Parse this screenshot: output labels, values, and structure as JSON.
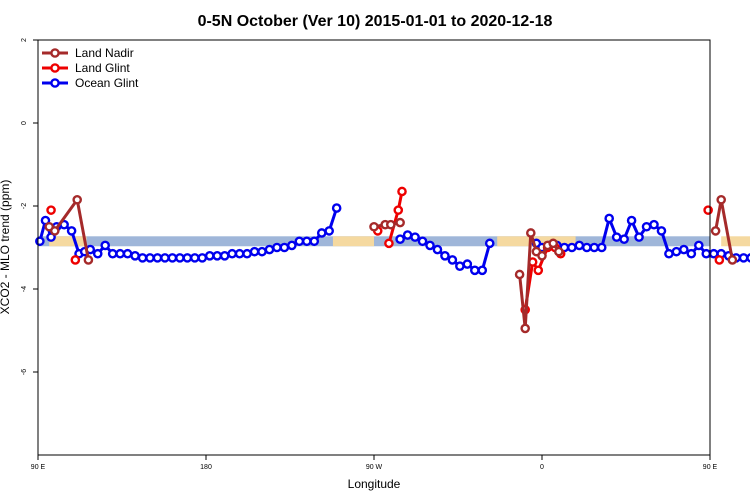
{
  "chart_data": {
    "type": "line",
    "title": "0-5N October (Ver 10)   2015-01-01 to 2020-12-18",
    "xlabel": "Longitude",
    "ylabel": "XCO2 - MLO trend (ppm)",
    "xlim": [
      90,
      450
    ],
    "ylim": [
      -8,
      2
    ],
    "x_ticks": [
      {
        "value": 90,
        "label": "90 E"
      },
      {
        "value": 180,
        "label": "180"
      },
      {
        "value": 270,
        "label": "90 W"
      },
      {
        "value": 360,
        "label": "0"
      },
      {
        "value": 450,
        "label": "90 E"
      },
      {
        "value": 540,
        "label": "180"
      }
    ],
    "y_ticks": [
      {
        "value": 2,
        "label": "2"
      },
      {
        "value": 0,
        "label": "0"
      },
      {
        "value": -2,
        "label": "-2"
      },
      {
        "value": -4,
        "label": "-4"
      },
      {
        "value": -6,
        "label": "-6"
      }
    ],
    "legend_position": "top-left",
    "reference_band": {
      "y_center": -2.85,
      "half_width": 0.12,
      "color": "#9fb6d9",
      "land_color": "#f5d9a0",
      "land_ranges": [
        [
          96,
          116
        ],
        [
          248,
          270
        ],
        [
          336,
          378
        ],
        [
          456,
          476
        ]
      ]
    },
    "series": [
      {
        "name": "Land Nadir",
        "color": "#a52a2a",
        "segments": [
          [
            [
              96,
              -2.5
            ],
            [
              99,
              -2.6
            ],
            [
              111,
              -1.85
            ],
            [
              117,
              -3.3
            ]
          ],
          [
            [
              270,
              -2.5
            ],
            [
              276,
              -2.45
            ],
            [
              279,
              -2.45
            ],
            [
              284,
              -2.4
            ]
          ],
          [
            [
              348,
              -3.65
            ],
            [
              351,
              -4.95
            ],
            [
              354,
              -2.65
            ],
            [
              357,
              -3.1
            ],
            [
              360,
              -3.2
            ],
            [
              363,
              -2.95
            ],
            [
              366,
              -2.9
            ],
            [
              369,
              -3.1
            ]
          ],
          [
            [
              453,
              -2.6
            ],
            [
              456,
              -1.85
            ],
            [
              462,
              -3.3
            ]
          ]
        ]
      },
      {
        "name": "Land Glint",
        "color": "#ee0000",
        "segments": [
          [
            [
              97,
              -2.1
            ]
          ],
          [
            [
              110,
              -3.3
            ]
          ],
          [
            [
              272,
              -2.6
            ]
          ],
          [
            [
              278,
              -2.9
            ],
            [
              283,
              -2.1
            ],
            [
              285,
              -1.65
            ]
          ],
          [
            [
              351,
              -4.5
            ],
            [
              355,
              -3.35
            ],
            [
              358,
              -3.55
            ],
            [
              363,
              -3.0
            ],
            [
              367,
              -3.0
            ],
            [
              370,
              -3.15
            ]
          ],
          [
            [
              449,
              -2.1
            ]
          ],
          [
            [
              455,
              -3.3
            ]
          ]
        ]
      },
      {
        "name": "Ocean Glint",
        "color": "#0000ee",
        "segments": [
          [
            [
              91,
              -2.85
            ],
            [
              94,
              -2.35
            ],
            [
              97,
              -2.75
            ],
            [
              100,
              -2.5
            ],
            [
              104,
              -2.45
            ],
            [
              108,
              -2.6
            ],
            [
              112,
              -3.15
            ],
            [
              115,
              -3.1
            ],
            [
              118,
              -3.05
            ],
            [
              122,
              -3.15
            ],
            [
              126,
              -2.95
            ],
            [
              130,
              -3.15
            ],
            [
              134,
              -3.15
            ],
            [
              138,
              -3.15
            ],
            [
              142,
              -3.2
            ],
            [
              146,
              -3.25
            ],
            [
              150,
              -3.25
            ],
            [
              154,
              -3.25
            ],
            [
              158,
              -3.25
            ],
            [
              162,
              -3.25
            ],
            [
              166,
              -3.25
            ],
            [
              170,
              -3.25
            ],
            [
              174,
              -3.25
            ],
            [
              178,
              -3.25
            ],
            [
              182,
              -3.2
            ],
            [
              186,
              -3.2
            ],
            [
              190,
              -3.2
            ],
            [
              194,
              -3.15
            ],
            [
              198,
              -3.15
            ],
            [
              202,
              -3.15
            ],
            [
              206,
              -3.1
            ],
            [
              210,
              -3.1
            ],
            [
              214,
              -3.05
            ],
            [
              218,
              -3.0
            ],
            [
              222,
              -3.0
            ],
            [
              226,
              -2.95
            ],
            [
              230,
              -2.85
            ],
            [
              234,
              -2.85
            ],
            [
              238,
              -2.85
            ],
            [
              242,
              -2.65
            ],
            [
              246,
              -2.6
            ],
            [
              250,
              -2.05
            ]
          ],
          [
            [
              284,
              -2.8
            ],
            [
              288,
              -2.7
            ],
            [
              292,
              -2.75
            ],
            [
              296,
              -2.85
            ],
            [
              300,
              -2.95
            ],
            [
              304,
              -3.05
            ],
            [
              308,
              -3.2
            ],
            [
              312,
              -3.3
            ],
            [
              316,
              -3.45
            ],
            [
              320,
              -3.4
            ],
            [
              324,
              -3.55
            ],
            [
              328,
              -3.55
            ],
            [
              332,
              -2.9
            ]
          ],
          [
            [
              357,
              -2.9
            ],
            [
              360,
              -3.0
            ],
            [
              364,
              -2.95
            ],
            [
              368,
              -2.95
            ],
            [
              372,
              -3.0
            ],
            [
              376,
              -3.0
            ],
            [
              380,
              -2.95
            ],
            [
              384,
              -3.0
            ],
            [
              388,
              -3.0
            ],
            [
              392,
              -3.0
            ],
            [
              396,
              -2.3
            ],
            [
              400,
              -2.75
            ],
            [
              404,
              -2.8
            ],
            [
              408,
              -2.35
            ],
            [
              412,
              -2.75
            ],
            [
              416,
              -2.5
            ],
            [
              420,
              -2.45
            ],
            [
              424,
              -2.6
            ],
            [
              428,
              -3.15
            ],
            [
              432,
              -3.1
            ],
            [
              436,
              -3.05
            ],
            [
              440,
              -3.15
            ],
            [
              444,
              -2.95
            ],
            [
              448,
              -3.15
            ],
            [
              452,
              -3.15
            ],
            [
              456,
              -3.15
            ],
            [
              460,
              -3.2
            ],
            [
              464,
              -3.25
            ],
            [
              468,
              -3.25
            ],
            [
              472,
              -3.25
            ],
            [
              476,
              -3.25
            ]
          ]
        ]
      }
    ]
  }
}
